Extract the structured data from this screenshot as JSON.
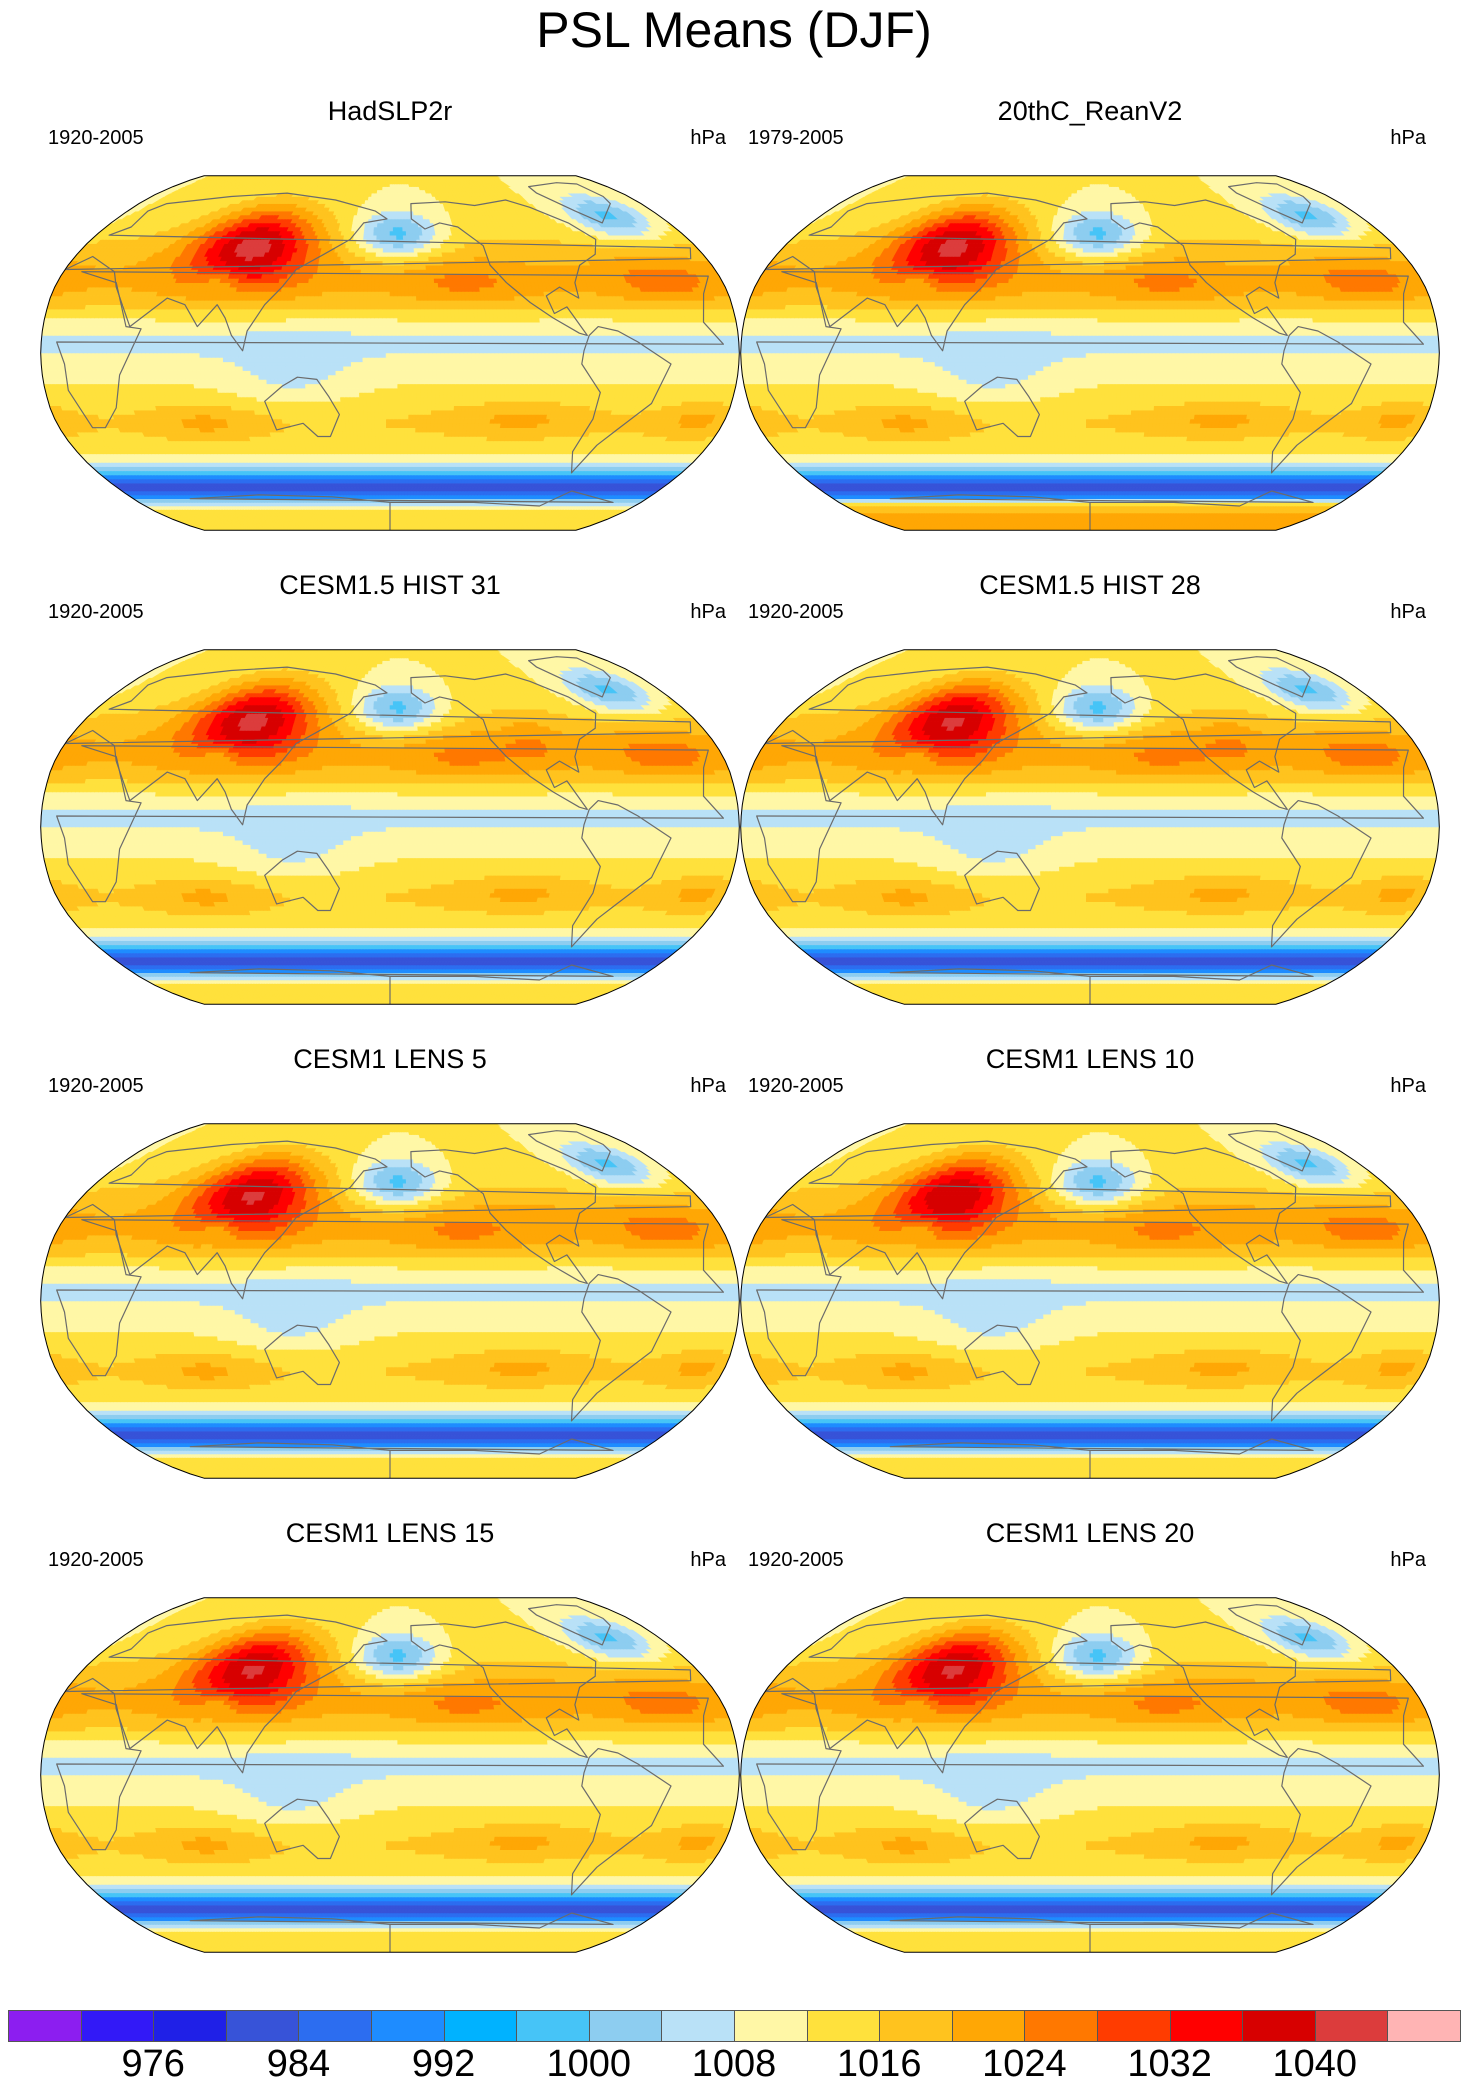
{
  "title": "PSL Means (DJF)",
  "chart_data": {
    "type": "heatmap",
    "variable": "PSL",
    "season": "DJF",
    "units": "hPa",
    "projection": "Robinson (Pacific-centered)",
    "panels": [
      {
        "id": "p0",
        "title": "HadSLP2r",
        "years": "1920-2005",
        "units": "hPa",
        "variant": "obs1",
        "ah": 0.5,
        "sh": 0,
        "ant": "none"
      },
      {
        "id": "p1",
        "title": "20thC_ReanV2",
        "years": "1979-2005",
        "units": "hPa",
        "variant": "obs2",
        "ah": 0.4,
        "sh": 0,
        "ant": "light"
      },
      {
        "id": "p2",
        "title": "CESM1.5 HIST 31",
        "years": "1920-2005",
        "units": "hPa",
        "variant": "cesm15",
        "ah": 0.4,
        "sh": -1,
        "ant": "none"
      },
      {
        "id": "p3",
        "title": "CESM1.5 HIST 28",
        "years": "1920-2005",
        "units": "hPa",
        "variant": "cesm15",
        "ah": 0.3,
        "sh": -1,
        "ant": "none"
      },
      {
        "id": "p4",
        "title": "CESM1 LENS 5",
        "years": "1920-2005",
        "units": "hPa",
        "variant": "lens",
        "ah": 0.3,
        "sh": 0,
        "ant": "none"
      },
      {
        "id": "p5",
        "title": "CESM1 LENS 10",
        "years": "1920-2005",
        "units": "hPa",
        "variant": "lens",
        "ah": 0.2,
        "sh": 0,
        "ant": "none"
      },
      {
        "id": "p6",
        "title": "CESM1 LENS 15",
        "years": "1920-2005",
        "units": "hPa",
        "variant": "lens",
        "ah": 0.3,
        "sh": 0,
        "ant": "none"
      },
      {
        "id": "p7",
        "title": "CESM1 LENS 20",
        "years": "1920-2005",
        "units": "hPa",
        "variant": "lens",
        "ah": 0.3,
        "sh": 0,
        "ant": "none"
      }
    ],
    "colorbar": {
      "levels": [
        972,
        976,
        980,
        984,
        988,
        992,
        996,
        1000,
        1004,
        1008,
        1012,
        1016,
        1020,
        1024,
        1028,
        1032,
        1036,
        1040,
        1044
      ],
      "labels": [
        "976",
        "984",
        "992",
        "1000",
        "1008",
        "1016",
        "1024",
        "1032",
        "1040"
      ],
      "label_values": [
        976,
        984,
        992,
        1000,
        1008,
        1016,
        1024,
        1032,
        1040
      ],
      "colors": [
        "#8c1ef0",
        "#3219f7",
        "#1f20e7",
        "#3753d8",
        "#2c6df0",
        "#1e8cff",
        "#00b2ff",
        "#46c4f7",
        "#8dcdf0",
        "#b9e1f7",
        "#fff7a6",
        "#ffe13c",
        "#ffc31e",
        "#ffa705",
        "#ff7800",
        "#ff3c00",
        "#ff0000",
        "#d70000",
        "#dc3c3c",
        "#ffb4b4"
      ]
    }
  }
}
